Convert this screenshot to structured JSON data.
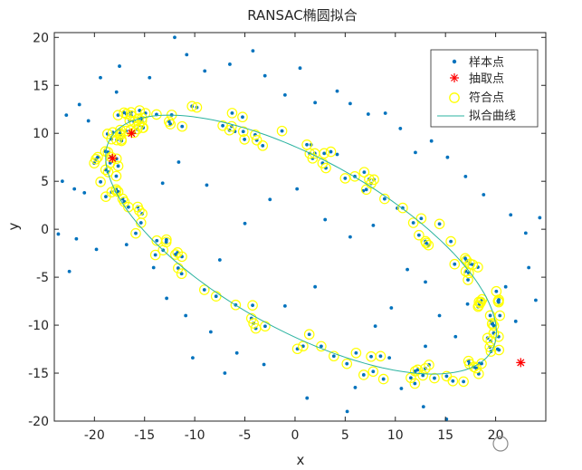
{
  "chart_data": {
    "type": "scatter",
    "title": "RANSAC椭圆拟合",
    "xlabel": "x",
    "ylabel": "y",
    "xlim": [
      -24,
      25
    ],
    "ylim": [
      -20,
      20.5
    ],
    "xticks": [
      "-20",
      "-15",
      "-10",
      "-5",
      "0",
      "5",
      "10",
      "15",
      "20"
    ],
    "yticks": [
      "-20",
      "-15",
      "-10",
      "-5",
      "0",
      "5",
      "10",
      "15",
      "20"
    ],
    "grid": false,
    "legend_position": "top-right",
    "legend": [
      "样本点",
      "抽取点",
      "符合点",
      "拟合曲线"
    ],
    "colors": {
      "samples": "#0072bd",
      "picked": "#ff0000",
      "inliers": "#ffff00",
      "curve": "#2bb3a0"
    },
    "ellipse": {
      "center": [
        0.6,
        -1.6
      ],
      "semi_axis_major": 22.0,
      "semi_axis_minor": 8.8,
      "rotation_deg": -30.5
    },
    "picked_points": [
      {
        "x": -16.3,
        "y": 10.0
      },
      {
        "x": -18.2,
        "y": 7.4
      },
      {
        "x": 22.5,
        "y": -13.9
      }
    ],
    "outlier_points": [
      {
        "x": -22.8,
        "y": 11.9
      },
      {
        "x": -21.5,
        "y": 13.0
      },
      {
        "x": -20.6,
        "y": 11.3
      },
      {
        "x": -23.2,
        "y": 5.0
      },
      {
        "x": -22.0,
        "y": 4.2
      },
      {
        "x": -21.0,
        "y": 3.8
      },
      {
        "x": -23.6,
        "y": -0.5
      },
      {
        "x": -21.8,
        "y": -1.0
      },
      {
        "x": -22.5,
        "y": -4.4
      },
      {
        "x": -19.8,
        "y": -2.1
      },
      {
        "x": -17.5,
        "y": 17.0
      },
      {
        "x": -14.5,
        "y": 15.8
      },
      {
        "x": -12.0,
        "y": 20.0
      },
      {
        "x": -10.8,
        "y": 18.2
      },
      {
        "x": -9.0,
        "y": 16.5
      },
      {
        "x": -6.5,
        "y": 17.2
      },
      {
        "x": -4.2,
        "y": 18.6
      },
      {
        "x": -3.0,
        "y": 16.0
      },
      {
        "x": -1.0,
        "y": 14.0
      },
      {
        "x": 0.5,
        "y": 16.8
      },
      {
        "x": 2.0,
        "y": 13.2
      },
      {
        "x": 4.2,
        "y": 14.4
      },
      {
        "x": 5.5,
        "y": 13.1
      },
      {
        "x": 7.3,
        "y": 12.0
      },
      {
        "x": 9.0,
        "y": 12.1
      },
      {
        "x": 10.5,
        "y": 10.5
      },
      {
        "x": 12.0,
        "y": 8.0
      },
      {
        "x": 13.6,
        "y": 9.2
      },
      {
        "x": 15.2,
        "y": 7.5
      },
      {
        "x": 17.0,
        "y": 5.5
      },
      {
        "x": 18.8,
        "y": 3.6
      },
      {
        "x": 21.5,
        "y": 1.5
      },
      {
        "x": 23.0,
        "y": -0.4
      },
      {
        "x": 24.4,
        "y": 1.2
      },
      {
        "x": 23.3,
        "y": -4.0
      },
      {
        "x": 21.0,
        "y": -6.0
      },
      {
        "x": 19.5,
        "y": -9.5
      },
      {
        "x": 17.2,
        "y": -7.8
      },
      {
        "x": 16.0,
        "y": -11.2
      },
      {
        "x": 14.4,
        "y": -9.0
      },
      {
        "x": 13.0,
        "y": -5.5
      },
      {
        "x": 11.2,
        "y": -4.2
      },
      {
        "x": 9.6,
        "y": -8.2
      },
      {
        "x": 8.0,
        "y": -10.1
      },
      {
        "x": 15.1,
        "y": -19.8
      },
      {
        "x": 12.8,
        "y": -18.5
      },
      {
        "x": 10.6,
        "y": -16.6
      },
      {
        "x": 6.0,
        "y": -16.5
      },
      {
        "x": 5.2,
        "y": -19.0
      },
      {
        "x": 1.2,
        "y": -17.6
      },
      {
        "x": -3.1,
        "y": -14.1
      },
      {
        "x": -5.8,
        "y": -12.9
      },
      {
        "x": -8.4,
        "y": -10.7
      },
      {
        "x": -10.9,
        "y": -9.0
      },
      {
        "x": -12.8,
        "y": -7.2
      },
      {
        "x": -14.1,
        "y": -4.0
      },
      {
        "x": -16.8,
        "y": -1.6
      },
      {
        "x": -7.5,
        "y": -3.2
      },
      {
        "x": -5.0,
        "y": 0.6
      },
      {
        "x": -2.5,
        "y": 3.1
      },
      {
        "x": 0.2,
        "y": 4.2
      },
      {
        "x": 3.0,
        "y": 1.0
      },
      {
        "x": 5.5,
        "y": -0.8
      },
      {
        "x": 7.8,
        "y": 0.4
      },
      {
        "x": -8.8,
        "y": 4.6
      },
      {
        "x": -11.6,
        "y": 7.0
      },
      {
        "x": -13.2,
        "y": 4.8
      },
      {
        "x": 1.6,
        "y": 8.8
      },
      {
        "x": 4.2,
        "y": 7.8
      },
      {
        "x": -6.0,
        "y": 10.2
      },
      {
        "x": 18.4,
        "y": -14.0
      },
      {
        "x": 20.2,
        "y": -12.5
      },
      {
        "x": 13.0,
        "y": -12.2
      },
      {
        "x": 9.4,
        "y": -13.4
      },
      {
        "x": -1.0,
        "y": -8.0
      },
      {
        "x": 2.0,
        "y": -6.0
      },
      {
        "x": 6.8,
        "y": 4.0
      },
      {
        "x": 10.2,
        "y": 2.2
      },
      {
        "x": -17.8,
        "y": 14.3
      },
      {
        "x": -19.4,
        "y": 15.8
      },
      {
        "x": -10.2,
        "y": -13.4
      },
      {
        "x": -7.0,
        "y": -15.0
      },
      {
        "x": 22.0,
        "y": -9.6
      },
      {
        "x": 24.0,
        "y": -7.4
      }
    ]
  }
}
